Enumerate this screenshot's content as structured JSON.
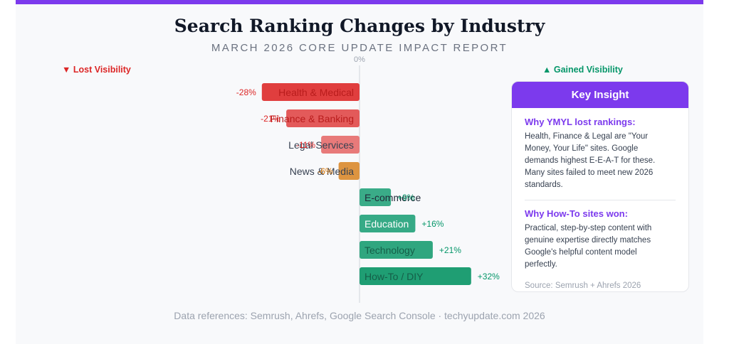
{
  "header": {
    "title": "Search Ranking Changes by Industry",
    "subtitle": "MARCH 2026 CORE UPDATE IMPACT REPORT"
  },
  "legend": {
    "lost": "▼ Lost Visibility",
    "gained": "▲ Gained Visibility",
    "lost_color": "#dc2626",
    "gained_color": "#059669"
  },
  "chart_data": {
    "type": "bar",
    "orientation": "horizontal-diverging",
    "zero_label": "0%",
    "categories": [
      "Health & Medical",
      "Finance & Banking",
      "Legal Services",
      "News & Media",
      "E-commerce",
      "Education",
      "Technology",
      "How-To / DIY"
    ],
    "values": [
      -28,
      -21,
      -11,
      -6,
      9,
      16,
      21,
      32
    ],
    "value_labels": [
      "-28%",
      "-21%",
      "-11%",
      "-6%",
      "+9%",
      "+16%",
      "+21%",
      "+32%"
    ],
    "colors": [
      "#e03e3e",
      "#e35a5a",
      "#e87a7a",
      "#dd9440",
      "#3aac88",
      "#36aa86",
      "#2fa67f",
      "#1f9e73"
    ],
    "xlim": [
      -28,
      32
    ],
    "grid": false
  },
  "insight": {
    "heading": "Key Insight",
    "section1_title": "Why YMYL lost rankings:",
    "section1_text": "Health, Finance & Legal are \"Your Money, Your Life\" sites. Google demands highest E-E-A-T for these. Many sites failed to meet new 2026 standards.",
    "section2_title": "Why How-To sites won:",
    "section2_text": "Practical, step-by-step content with genuine expertise directly matches Google's helpful content model perfectly.",
    "source": "Source: Semrush + Ahrefs 2026"
  },
  "footer": "Data references: Semrush, Ahrefs, Google Search Console · techyupdate.com 2026",
  "accent_color": "#7c3aed"
}
